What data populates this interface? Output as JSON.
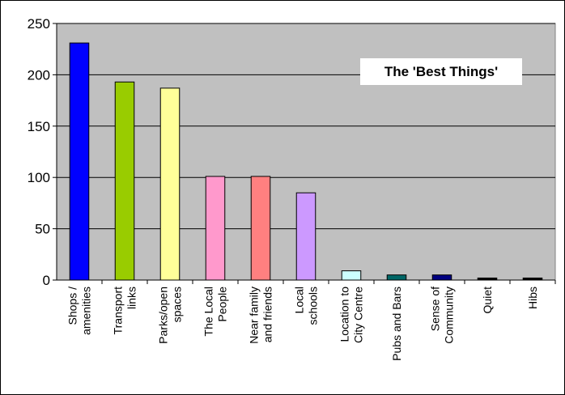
{
  "chart_data": {
    "type": "bar",
    "title": "The 'Best Things'",
    "categories": [
      [
        "Shops /",
        "amenities"
      ],
      [
        "Transport",
        "links"
      ],
      [
        "Parks/open",
        "spaces"
      ],
      [
        "The Local",
        "People"
      ],
      [
        "Near family",
        "and friends"
      ],
      [
        "Local",
        "schools"
      ],
      [
        "Location to",
        "City Centre"
      ],
      [
        "Pubs and Bars"
      ],
      [
        "Sense of",
        "Community"
      ],
      [
        "Quiet"
      ],
      [
        "Hibs"
      ]
    ],
    "values": [
      231,
      193,
      187,
      101,
      101,
      85,
      9,
      5,
      5,
      2,
      2
    ],
    "bar_colors": [
      "#0000ff",
      "#99cc00",
      "#ffff99",
      "#ff99cc",
      "#ff8080",
      "#cc99ff",
      "#ccffff",
      "#006666",
      "#000080",
      "#000000",
      "#000000"
    ],
    "ylim": [
      0,
      250
    ],
    "yticks": [
      0,
      50,
      100,
      150,
      200,
      250
    ],
    "grid": true,
    "plot_background": "#c0c0c0",
    "xlabel": "",
    "ylabel": ""
  }
}
